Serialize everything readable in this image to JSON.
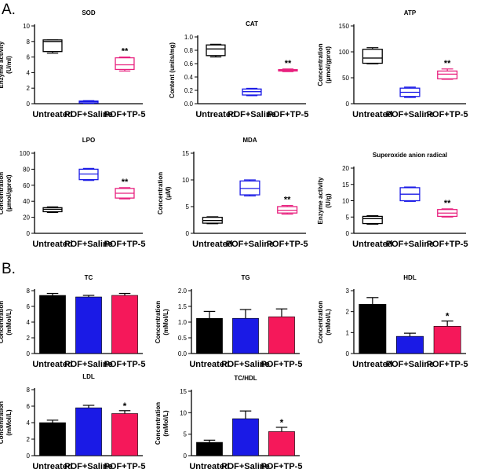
{
  "panels": [
    {
      "label": "A."
    },
    {
      "label": "B."
    }
  ],
  "colors": {
    "untreated": "#000000",
    "saline": "#1a1ae6",
    "tp5": "#e8207e",
    "tp5_bar": "#f5185a"
  },
  "chart_data": [
    {
      "type": "box",
      "title": "SOD",
      "ylabel": [
        "Enzyme activity",
        "(U/ml)"
      ],
      "ylim": [
        0,
        10
      ],
      "yticks": [
        "0",
        "2",
        "4",
        "6",
        "8",
        "10"
      ],
      "ytick_values": [
        0,
        2,
        4,
        6,
        8,
        10
      ],
      "categories": [
        "Untreated",
        "POF+Saline",
        "POF+TP-5"
      ],
      "boxes": [
        {
          "min": 6.5,
          "q1": 6.7,
          "median": 8.0,
          "q3": 8.2,
          "max": 8.2
        },
        {
          "min": 0.05,
          "q1": 0.1,
          "median": 0.25,
          "q3": 0.35,
          "max": 0.4
        },
        {
          "min": 4.2,
          "q1": 4.4,
          "median": 5.0,
          "q3": 5.9,
          "max": 6.0
        }
      ],
      "annotations": [
        "",
        "",
        "**"
      ]
    },
    {
      "type": "box",
      "title": "CAT",
      "ylabel": [
        "Content (units/mg)"
      ],
      "ylim": [
        0,
        1.0
      ],
      "yticks": [
        "0.0",
        "0.2",
        "0.4",
        "0.6",
        "0.8",
        "1.0"
      ],
      "ytick_values": [
        0,
        0.2,
        0.4,
        0.6,
        0.8,
        1.0
      ],
      "categories": [
        "Untreated",
        "POF+Saline",
        "POF+TP-5"
      ],
      "boxes": [
        {
          "min": 0.7,
          "q1": 0.72,
          "median": 0.82,
          "q3": 0.88,
          "max": 0.89
        },
        {
          "min": 0.12,
          "q1": 0.13,
          "median": 0.18,
          "q3": 0.22,
          "max": 0.23
        },
        {
          "min": 0.48,
          "q1": 0.49,
          "median": 0.5,
          "q3": 0.51,
          "max": 0.52
        }
      ],
      "annotations": [
        "",
        "",
        "**"
      ]
    },
    {
      "type": "box",
      "title": "ATP",
      "ylabel": [
        "Concentration",
        "(μmol/gprot)"
      ],
      "ylim": [
        0,
        150
      ],
      "yticks": [
        "0",
        "50",
        "100",
        "150"
      ],
      "ytick_values": [
        0,
        50,
        100,
        150
      ],
      "categories": [
        "Untreated",
        "POF+Saline",
        "POF+TP-5"
      ],
      "boxes": [
        {
          "min": 77,
          "q1": 78,
          "median": 88,
          "q3": 105,
          "max": 108
        },
        {
          "min": 12,
          "q1": 14,
          "median": 22,
          "q3": 30,
          "max": 32
        },
        {
          "min": 47,
          "q1": 48,
          "median": 57,
          "q3": 63,
          "max": 67
        }
      ],
      "annotations": [
        "",
        "",
        "**"
      ]
    },
    {
      "type": "box",
      "title": "LPO",
      "ylabel": [
        "Concentration",
        "(μmol/gprot)"
      ],
      "ylim": [
        0,
        100
      ],
      "yticks": [
        "0",
        "20",
        "40",
        "60",
        "80",
        "100"
      ],
      "ytick_values": [
        0,
        20,
        40,
        60,
        80,
        100
      ],
      "categories": [
        "Untreated",
        "POF+Saline",
        "POF+TP-5"
      ],
      "boxes": [
        {
          "min": 26,
          "q1": 27,
          "median": 30,
          "q3": 32,
          "max": 33
        },
        {
          "min": 66,
          "q1": 67,
          "median": 74,
          "q3": 80,
          "max": 81
        },
        {
          "min": 43,
          "q1": 44,
          "median": 50,
          "q3": 56,
          "max": 57
        }
      ],
      "annotations": [
        "",
        "",
        "**"
      ]
    },
    {
      "type": "box",
      "title": "MDA",
      "ylabel": [
        "Concentration",
        "(μM)"
      ],
      "ylim": [
        0,
        15
      ],
      "yticks": [
        "0",
        "5",
        "10",
        "15"
      ],
      "ytick_values": [
        0,
        5,
        10,
        15
      ],
      "categories": [
        "Untreated",
        "POF+Saline",
        "POF+TP-5"
      ],
      "boxes": [
        {
          "min": 1.8,
          "q1": 1.9,
          "median": 2.4,
          "q3": 3.0,
          "max": 3.1
        },
        {
          "min": 7.0,
          "q1": 7.2,
          "median": 8.4,
          "q3": 9.8,
          "max": 10.0
        },
        {
          "min": 3.6,
          "q1": 3.8,
          "median": 4.3,
          "q3": 5.0,
          "max": 5.2
        }
      ],
      "annotations": [
        "",
        "",
        "**"
      ]
    },
    {
      "type": "box",
      "title": "Superoxide anion radical",
      "ylabel": [
        "Enzyme activity",
        "(U/g)"
      ],
      "ylim": [
        0,
        20
      ],
      "yticks": [
        "0",
        "5",
        "10",
        "15",
        "20"
      ],
      "ytick_values": [
        0,
        5,
        10,
        15,
        20
      ],
      "categories": [
        "Untreated",
        "POF+Saline",
        "POF+TP-5"
      ],
      "boxes": [
        {
          "min": 2.8,
          "q1": 3.0,
          "median": 4.5,
          "q3": 5.2,
          "max": 5.4
        },
        {
          "min": 9.8,
          "q1": 10.0,
          "median": 12.0,
          "q3": 14.0,
          "max": 14.2
        },
        {
          "min": 5.0,
          "q1": 5.2,
          "median": 6.2,
          "q3": 7.3,
          "max": 7.5
        }
      ],
      "annotations": [
        "",
        "",
        "**"
      ]
    },
    {
      "type": "bar",
      "title": "TC",
      "ylabel": [
        "Concentration",
        "(mMol/L)"
      ],
      "ylim": [
        0,
        8
      ],
      "yticks": [
        "0",
        "2",
        "4",
        "6",
        "8"
      ],
      "ytick_values": [
        0,
        2,
        4,
        6,
        8
      ],
      "categories": [
        "Untreated",
        "POF+Saline",
        "POF+TP-5"
      ],
      "values": [
        7.4,
        7.2,
        7.4
      ],
      "errors": [
        0.25,
        0.2,
        0.25
      ],
      "annotations": [
        "",
        "",
        ""
      ]
    },
    {
      "type": "bar",
      "title": "TG",
      "ylabel": [
        "Concentration",
        "(mMol/L)"
      ],
      "ylim": [
        0,
        2.0
      ],
      "yticks": [
        "0.0",
        "0.5",
        "1.0",
        "1.5",
        "2.0"
      ],
      "ytick_values": [
        0,
        0.5,
        1.0,
        1.5,
        2.0
      ],
      "categories": [
        "Untreated",
        "POF+Saline",
        "POF+TP-5"
      ],
      "values": [
        1.12,
        1.12,
        1.17
      ],
      "errors": [
        0.22,
        0.28,
        0.25
      ],
      "annotations": [
        "",
        "",
        ""
      ]
    },
    {
      "type": "bar",
      "title": "HDL",
      "ylabel": [
        "Concentration",
        "(mMol/L)"
      ],
      "ylim": [
        0,
        3
      ],
      "yticks": [
        "0",
        "1",
        "2",
        "3"
      ],
      "ytick_values": [
        0,
        1,
        2,
        3
      ],
      "categories": [
        "Untreated",
        "POF+Saline",
        "POF+TP-5"
      ],
      "values": [
        2.35,
        0.82,
        1.3
      ],
      "errors": [
        0.32,
        0.15,
        0.25
      ],
      "annotations": [
        "",
        "",
        "*"
      ]
    },
    {
      "type": "bar",
      "title": "LDL",
      "ylabel": [
        "Concentration",
        "(mMol/L)"
      ],
      "ylim": [
        0,
        8
      ],
      "yticks": [
        "0",
        "2",
        "4",
        "6",
        "8"
      ],
      "ytick_values": [
        0,
        2,
        4,
        6,
        8
      ],
      "categories": [
        "Untreated",
        "POF+Saline",
        "POF+TP-5"
      ],
      "values": [
        4.0,
        5.8,
        5.1
      ],
      "errors": [
        0.3,
        0.3,
        0.35
      ],
      "annotations": [
        "",
        "",
        "*"
      ]
    },
    {
      "type": "bar",
      "title": "TC/HDL",
      "ylabel": [
        "Concentration",
        "(mMol/L)"
      ],
      "ylim": [
        0,
        15
      ],
      "yticks": [
        "0",
        "5",
        "10",
        "15"
      ],
      "ytick_values": [
        0,
        5,
        10,
        15
      ],
      "categories": [
        "Untreated",
        "POF+Saline",
        "POF+TP-5"
      ],
      "values": [
        3.1,
        8.6,
        5.6
      ],
      "errors": [
        0.5,
        1.8,
        1.0
      ],
      "annotations": [
        "",
        "",
        "*"
      ]
    }
  ]
}
